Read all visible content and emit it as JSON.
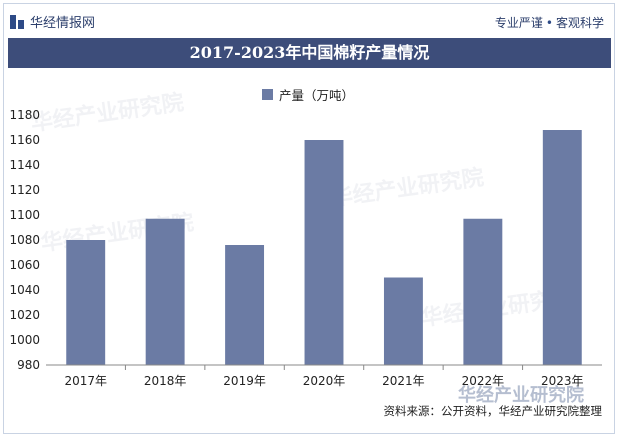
{
  "brand": {
    "name": "华经情报网",
    "slogan_left": "专业严谨",
    "slogan_sep": "•",
    "slogan_right": "客观科学"
  },
  "watermark_text": "华经产业研究院",
  "source": "资料来源：公开资料，华经产业研究院整理",
  "colors": {
    "header": "#3d4d7a",
    "bar": "#6b7ba4",
    "axis": "#888888"
  },
  "chart_data": {
    "type": "bar",
    "title": "2017-2023年中国棉籽产量情况",
    "legend": "产量（万吨）",
    "categories": [
      "2017年",
      "2018年",
      "2019年",
      "2020年",
      "2021年",
      "2022年",
      "2023年"
    ],
    "values": [
      1080,
      1097,
      1076,
      1160,
      1050,
      1097,
      1168
    ],
    "ylim": [
      980,
      1180
    ],
    "yticks": [
      980,
      1000,
      1020,
      1040,
      1060,
      1080,
      1100,
      1120,
      1140,
      1160,
      1180
    ],
    "xlabel": "",
    "ylabel": ""
  }
}
